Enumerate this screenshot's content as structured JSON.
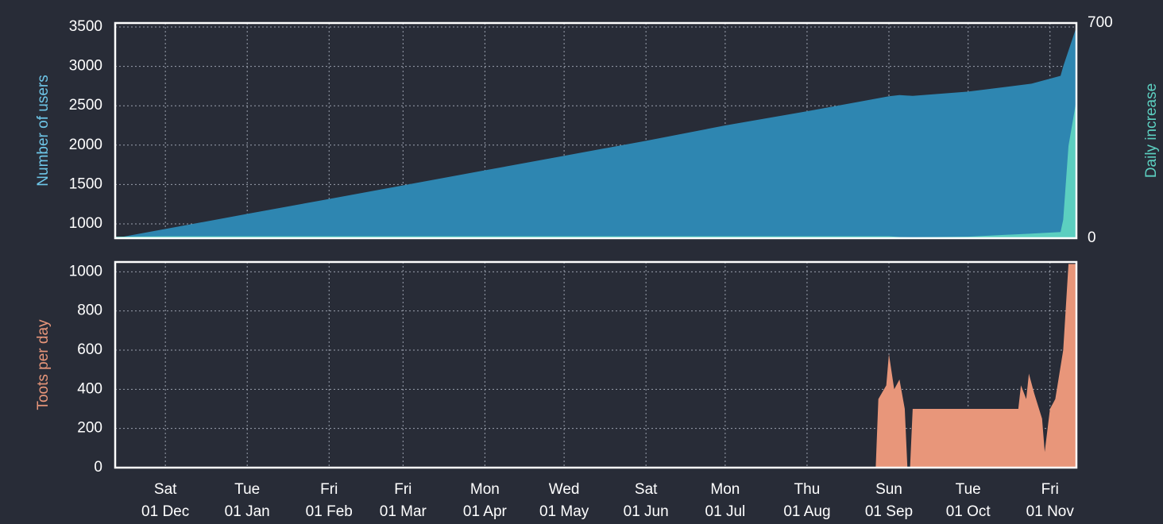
{
  "chart_data": [
    {
      "type": "area",
      "ylabel": "Number of users",
      "y2label": "Daily increase",
      "x": [
        "12 Nov",
        "01 Dec",
        "01 Jan",
        "01 Feb",
        "01 Mar",
        "01 Apr",
        "01 May",
        "01 Jun",
        "01 Jul",
        "01 Aug",
        "01 Sep",
        "05 Sep",
        "10 Sep",
        "01 Oct",
        "25 Oct",
        "05 Nov",
        "06 Nov",
        "08 Nov",
        "11 Nov"
      ],
      "xlim": [
        "12 Nov",
        "11 Nov"
      ],
      "series": [
        {
          "name": "Number of users",
          "color": "#2e86b1",
          "values": [
            819,
            936,
            1127,
            1317,
            1489,
            1680,
            1865,
            2055,
            2250,
            2430,
            2620,
            2635,
            2625,
            2680,
            2780,
            2880,
            3000,
            3200,
            3500
          ]
        },
        {
          "name": "Daily increase",
          "color": "#5ccfc0",
          "axis": "y2",
          "values": [
            5,
            6,
            6,
            6,
            6,
            6,
            6,
            6,
            6,
            6,
            6,
            4,
            3,
            5,
            15,
            20,
            60,
            300,
            450
          ]
        }
      ],
      "ylim": [
        819,
        3550
      ],
      "yticks": [
        1000,
        1500,
        2000,
        2500,
        3000,
        3500
      ],
      "y2lim": [
        0,
        700
      ],
      "y2ticks": [
        0,
        700
      ],
      "grid": true
    },
    {
      "type": "area",
      "ylabel": "Toots per day",
      "x": [
        "12 Nov",
        "27 Aug",
        "28 Aug",
        "31 Aug",
        "01 Sep",
        "03 Sep",
        "05 Sep",
        "07 Sep",
        "08 Sep",
        "09 Sep",
        "10 Sep",
        "20 Oct",
        "21 Oct",
        "23 Oct",
        "24 Oct",
        "26 Oct",
        "29 Oct",
        "30 Oct",
        "01 Nov",
        "03 Nov",
        "06 Nov",
        "08 Nov",
        "11 Nov"
      ],
      "xlim": [
        "12 Nov",
        "11 Nov"
      ],
      "series": [
        {
          "name": "Toots per day",
          "color": "#e8967a",
          "values": [
            0,
            0,
            350,
            420,
            580,
            400,
            450,
            300,
            0,
            0,
            300,
            300,
            420,
            350,
            480,
            380,
            250,
            80,
            300,
            350,
            600,
            1040,
            1040
          ]
        }
      ],
      "ylim": [
        0,
        1050
      ],
      "yticks": [
        0,
        200,
        400,
        600,
        800,
        1000
      ],
      "xticks": [
        {
          "value": "01 Dec",
          "label": "Sat"
        },
        {
          "value": "01 Jan",
          "label": "Tue"
        },
        {
          "value": "01 Feb",
          "label": "Fri"
        },
        {
          "value": "01 Mar",
          "label": "Fri"
        },
        {
          "value": "01 Apr",
          "label": "Mon"
        },
        {
          "value": "01 May",
          "label": "Wed"
        },
        {
          "value": "01 Jun",
          "label": "Sat"
        },
        {
          "value": "01 Jul",
          "label": "Mon"
        },
        {
          "value": "01 Aug",
          "label": "Thu"
        },
        {
          "value": "01 Sep",
          "label": "Sun"
        },
        {
          "value": "01 Oct",
          "label": "Tue"
        },
        {
          "value": "01 Nov",
          "label": "Fri"
        }
      ],
      "grid": true
    }
  ]
}
